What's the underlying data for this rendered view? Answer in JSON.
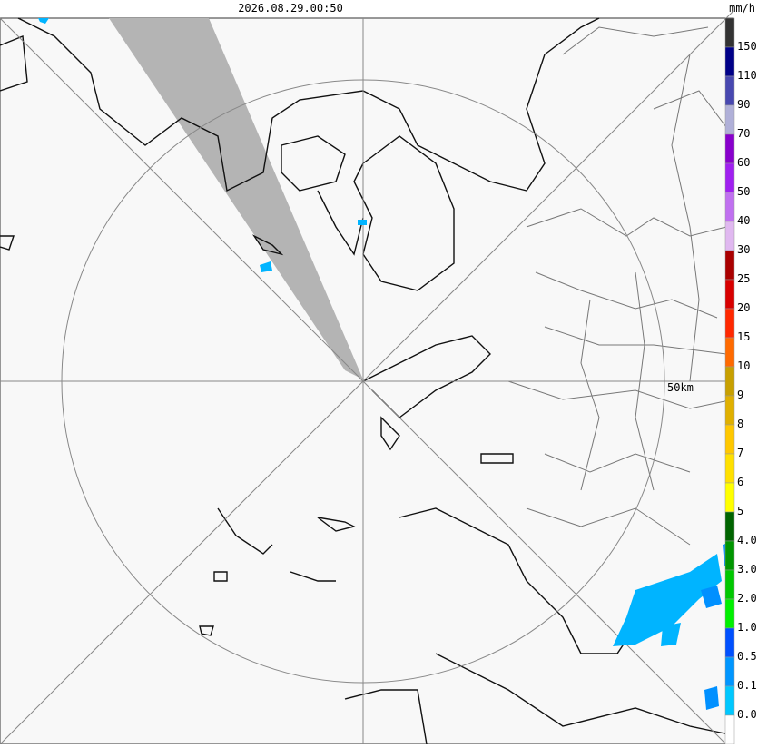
{
  "header": {
    "timestamp": "2026.08.29.00:50",
    "unit": "mm/h"
  },
  "map": {
    "range_label": "50km"
  },
  "legend": {
    "labels": [
      "150",
      "110",
      "90",
      "70",
      "60",
      "50",
      "40",
      "30",
      "25",
      "20",
      "15",
      "10",
      "9",
      "8",
      "7",
      "6",
      "5",
      "4.0",
      "3.0",
      "2.0",
      "1.0",
      "0.5",
      "0.1",
      "0.0"
    ],
    "colors": [
      "#333333",
      "#000088",
      "#4848b0",
      "#b0b0d8",
      "#8800cc",
      "#a020f0",
      "#c070f0",
      "#e0b8f0",
      "#aa0000",
      "#d80000",
      "#ff2800",
      "#ff6a00",
      "#c8a000",
      "#e0b000",
      "#ffc800",
      "#ffe000",
      "#ffff00",
      "#006400",
      "#009600",
      "#00c800",
      "#00f000",
      "#0050ff",
      "#0096ff",
      "#00c8ff",
      "#ffffff"
    ]
  }
}
